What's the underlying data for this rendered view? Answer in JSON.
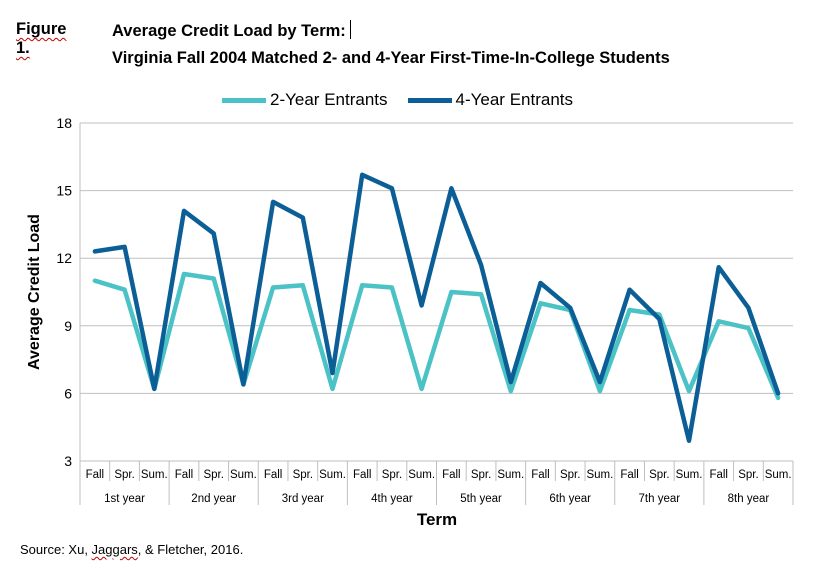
{
  "figure": {
    "label": "Figure 1.",
    "title_line1": "Average Credit Load by Term:",
    "title_line2": "Virginia Fall 2004 Matched 2- and 4-Year First-Time-In-College Students"
  },
  "source": {
    "prefix": "Source: Xu, ",
    "jaggars": "Jaggars",
    "suffix": ", & Fletcher, 2016."
  },
  "chart_data": {
    "type": "line",
    "ylabel": "Average Credit Load",
    "xlabel": "Term",
    "ylim": [
      3,
      18
    ],
    "yticks": [
      "3",
      "6",
      "9",
      "12",
      "15",
      "18"
    ],
    "grid": true,
    "legend_position": "top",
    "categories": [
      "Fall",
      "Spr.",
      "Sum.",
      "Fall",
      "Spr.",
      "Sum.",
      "Fall",
      "Spr.",
      "Sum.",
      "Fall",
      "Spr.",
      "Sum.",
      "Fall",
      "Spr.",
      "Sum.",
      "Fall",
      "Spr.",
      "Sum.",
      "Fall",
      "Spr.",
      "Sum.",
      "Fall",
      "Spr.",
      "Sum."
    ],
    "groups": [
      "1st year",
      "2nd year",
      "3rd year",
      "4th year",
      "5th year",
      "6th year",
      "7th year",
      "8th year"
    ],
    "series": [
      {
        "name": "2-Year Entrants",
        "color": "#4bc2c5",
        "values": [
          11.0,
          10.6,
          6.2,
          11.3,
          11.1,
          6.4,
          10.7,
          10.8,
          6.2,
          10.8,
          10.7,
          6.2,
          10.5,
          10.4,
          6.1,
          10.0,
          9.7,
          6.1,
          9.7,
          9.5,
          6.1,
          9.2,
          8.9,
          5.8
        ]
      },
      {
        "name": "4-Year Entrants",
        "color": "#0b5f96",
        "values": [
          12.3,
          12.5,
          6.2,
          14.1,
          13.1,
          6.4,
          14.5,
          13.8,
          6.9,
          15.7,
          15.1,
          9.9,
          15.1,
          11.7,
          6.5,
          10.9,
          9.8,
          6.5,
          10.6,
          9.3,
          3.9,
          11.6,
          9.8,
          6.0
        ]
      }
    ]
  }
}
